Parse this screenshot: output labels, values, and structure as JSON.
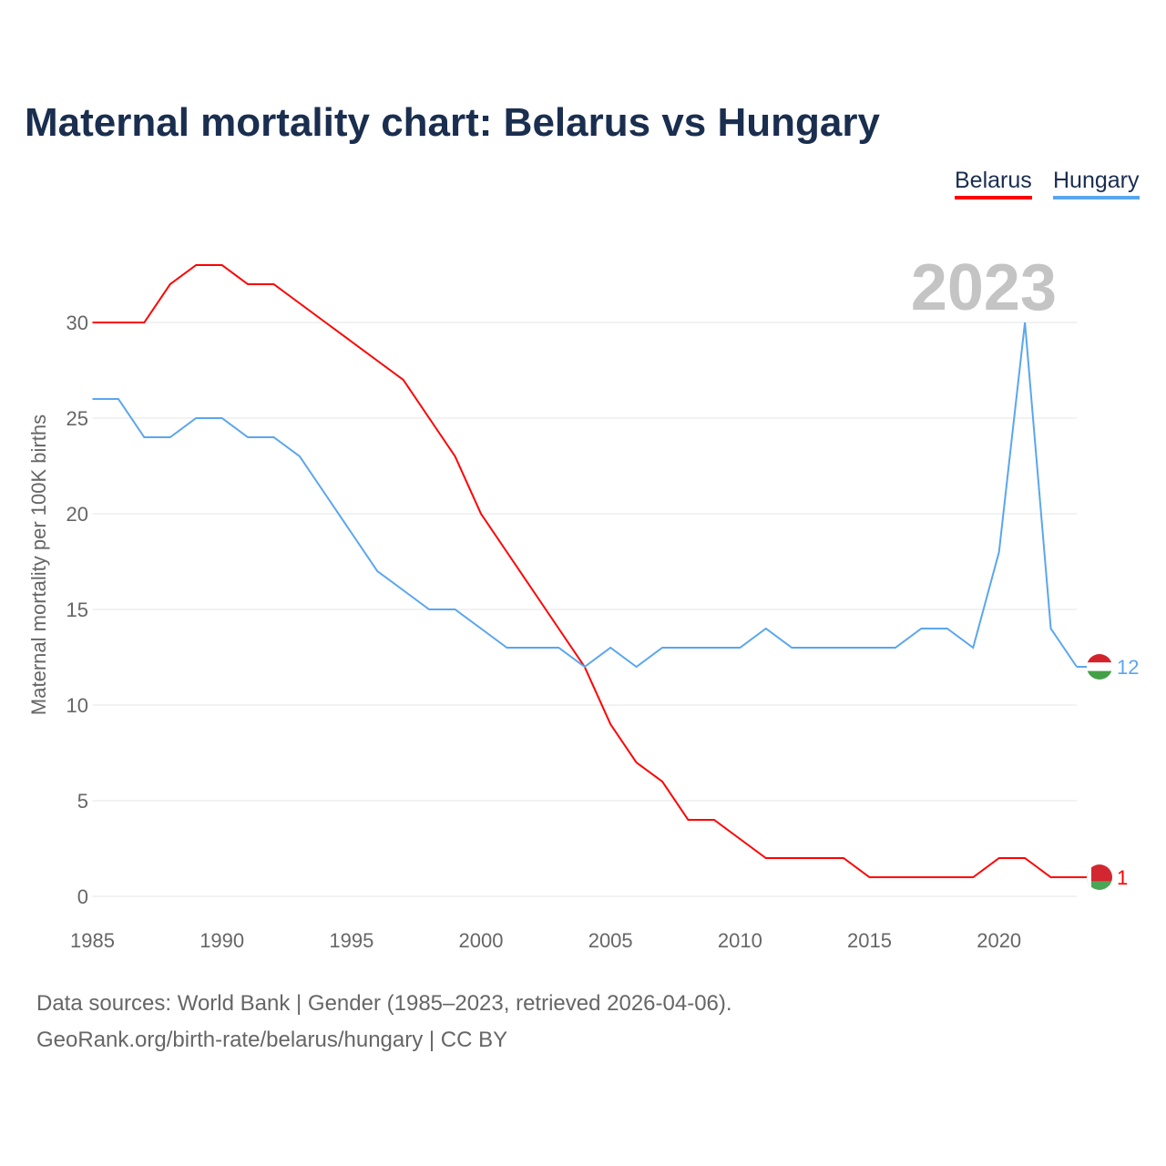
{
  "title": "Maternal mortality chart: Belarus vs Hungary",
  "year_label": "2023",
  "footer": {
    "line1": "Data sources: World Bank | Gender (1985–2023, retrieved 2026-04-06).",
    "line2": "GeoRank.org/birth-rate/belarus/hungary | CC BY"
  },
  "chart_data": {
    "type": "line",
    "title": "Maternal mortality chart: Belarus vs Hungary",
    "xlabel": "",
    "ylabel": "Maternal mortality per 100K births",
    "xlim": [
      1985,
      2023
    ],
    "ylim": [
      0,
      33
    ],
    "xticks": [
      "1985",
      "1990",
      "1995",
      "2000",
      "2005",
      "2010",
      "2015",
      "2020"
    ],
    "yticks": [
      "0",
      "5",
      "10",
      "15",
      "20",
      "25",
      "30"
    ],
    "grid": true,
    "legend": "top-right",
    "x": [
      1985,
      1986,
      1987,
      1988,
      1989,
      1990,
      1991,
      1992,
      1993,
      1994,
      1995,
      1996,
      1997,
      1998,
      1999,
      2000,
      2001,
      2002,
      2003,
      2004,
      2005,
      2006,
      2007,
      2008,
      2009,
      2010,
      2011,
      2012,
      2013,
      2014,
      2015,
      2016,
      2017,
      2018,
      2019,
      2020,
      2021,
      2022,
      2023
    ],
    "series": [
      {
        "name": "Belarus",
        "color": "#ff0000",
        "end_label": "1",
        "values": [
          30,
          30,
          30,
          32,
          33,
          33,
          32,
          32,
          31,
          30,
          29,
          28,
          27,
          25,
          23,
          20,
          18,
          16,
          14,
          12,
          9,
          7,
          6,
          4,
          4,
          3,
          2,
          2,
          2,
          2,
          1,
          1,
          1,
          1,
          1,
          2,
          2,
          1,
          1
        ]
      },
      {
        "name": "Hungary",
        "color": "#5aa6ee",
        "end_label": "12",
        "values": [
          26,
          26,
          24,
          24,
          25,
          25,
          24,
          24,
          23,
          21,
          19,
          17,
          16,
          15,
          15,
          14,
          13,
          13,
          13,
          12,
          13,
          12,
          13,
          13,
          13,
          13,
          14,
          13,
          13,
          13,
          13,
          13,
          14,
          14,
          13,
          18,
          30,
          14,
          12
        ]
      }
    ]
  }
}
